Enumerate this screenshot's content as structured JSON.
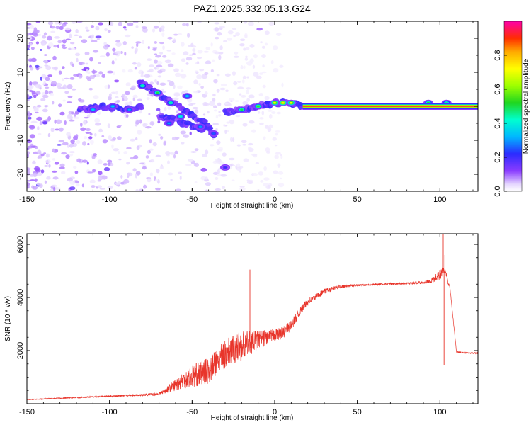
{
  "title": "PAZ1.2025.332.05.13.G24",
  "chart_data": [
    {
      "type": "heatmap",
      "title": "PAZ1.2025.332.05.13.G24",
      "xlabel": "Height of straight line (km)",
      "ylabel": "Frequency (Hz)",
      "xlim": [
        -150,
        123
      ],
      "ylim": [
        -25,
        25
      ],
      "xticks": [
        "-150",
        "-100",
        "-50",
        "0",
        "50",
        "100"
      ],
      "yticks": [
        "-20",
        "-10",
        "0",
        "10",
        "20"
      ],
      "colorbar": {
        "label": "Normalized spectral amplitude",
        "range": [
          0,
          1
        ],
        "ticks": [
          "0.0",
          "0.2",
          "0.4",
          "0.6",
          "0.8"
        ]
      },
      "features": {
        "main_line": {
          "x_start": 17,
          "x_end": 123,
          "frequency": 0,
          "amplitude": 0.95
        },
        "low_altitude_noise_xrange": [
          -150,
          -75
        ],
        "ridges": [
          {
            "x": [
              -82,
              -72,
              -62,
              -52,
              -42,
              -36
            ],
            "y": [
              7,
              4,
              1,
              -2,
              -5,
              -9
            ]
          },
          {
            "x": [
              -70,
              -60,
              -50,
              -42
            ],
            "y": [
              -3,
              -4,
              -6,
              -7
            ]
          },
          {
            "x": [
              -118,
              -105,
              -90,
              -80
            ],
            "y": [
              -1,
              0,
              -1,
              0
            ]
          },
          {
            "x": [
              -30,
              -20,
              -10,
              0,
              10,
              17
            ],
            "y": [
              -2,
              -1,
              0,
              1,
              1,
              0
            ]
          }
        ],
        "blobs": [
          {
            "x": -80,
            "y": 6,
            "v": 0.45
          },
          {
            "x": -71,
            "y": 4,
            "v": 0.5
          },
          {
            "x": -63,
            "y": 1,
            "v": 0.45
          },
          {
            "x": -57,
            "y": -3,
            "v": 0.4
          },
          {
            "x": -53,
            "y": 3,
            "v": 0.35
          },
          {
            "x": -64,
            "y": -5,
            "v": 0.3
          },
          {
            "x": -45,
            "y": -6,
            "v": 0.3
          },
          {
            "x": -37,
            "y": -8,
            "v": 0.25
          },
          {
            "x": -30,
            "y": -18,
            "v": 0.2
          },
          {
            "x": -110,
            "y": -1,
            "v": 0.35
          },
          {
            "x": -98,
            "y": 0,
            "v": 0.35
          },
          {
            "x": -88,
            "y": -1,
            "v": 0.3
          },
          {
            "x": -20,
            "y": -1,
            "v": 0.5
          },
          {
            "x": -10,
            "y": 0,
            "v": 0.55
          },
          {
            "x": 0,
            "y": 1,
            "v": 0.7
          },
          {
            "x": 5,
            "y": 1,
            "v": 0.75
          },
          {
            "x": 10,
            "y": 1,
            "v": 0.7
          },
          {
            "x": 93,
            "y": 1,
            "v": 0.5
          },
          {
            "x": 100,
            "y": 0,
            "v": 0.6
          },
          {
            "x": 104,
            "y": 1,
            "v": 0.45
          }
        ]
      }
    },
    {
      "type": "line",
      "xlabel": "Height of straight line (km)",
      "ylabel": "SNR (10 * v/v)",
      "xlim": [
        -150,
        123
      ],
      "ylim": [
        0,
        6400
      ],
      "xticks": [
        "-150",
        "-100",
        "-50",
        "0",
        "50",
        "100"
      ],
      "yticks": [
        "2000",
        "4000",
        "6000"
      ],
      "color": "#e8352b",
      "series": [
        {
          "name": "SNR",
          "x": [
            -150,
            -130,
            -110,
            -90,
            -80,
            -70,
            -65,
            -60,
            -55,
            -50,
            -45,
            -40,
            -35,
            -30,
            -25,
            -20,
            -15,
            -10,
            -5,
            0,
            5,
            10,
            15,
            20,
            30,
            40,
            50,
            60,
            70,
            80,
            90,
            95,
            100,
            103,
            105,
            106,
            110,
            115,
            123
          ],
          "values": [
            150,
            200,
            250,
            300,
            320,
            350,
            500,
            650,
            800,
            900,
            1000,
            1100,
            1400,
            1700,
            1900,
            2000,
            2150,
            2300,
            2400,
            2500,
            2600,
            2900,
            3400,
            3800,
            4200,
            4400,
            4450,
            4480,
            4500,
            4520,
            4550,
            4600,
            4800,
            5000,
            4500,
            4400,
            1950,
            1900,
            1900
          ],
          "noise": [
            20,
            30,
            40,
            50,
            60,
            80,
            200,
            350,
            500,
            650,
            700,
            750,
            800,
            850,
            900,
            850,
            700,
            550,
            450,
            380,
            350,
            300,
            250,
            200,
            150,
            100,
            60,
            60,
            60,
            60,
            80,
            150,
            300,
            250,
            80,
            60,
            50,
            40,
            40
          ]
        }
      ],
      "spikes": [
        {
          "x": -15,
          "y": 5050
        },
        {
          "x": -14,
          "y": 2100
        },
        {
          "x": 102,
          "y": 6400
        },
        {
          "x": 103,
          "y": 5600
        },
        {
          "x": 102.5,
          "y": 1450
        }
      ]
    }
  ]
}
